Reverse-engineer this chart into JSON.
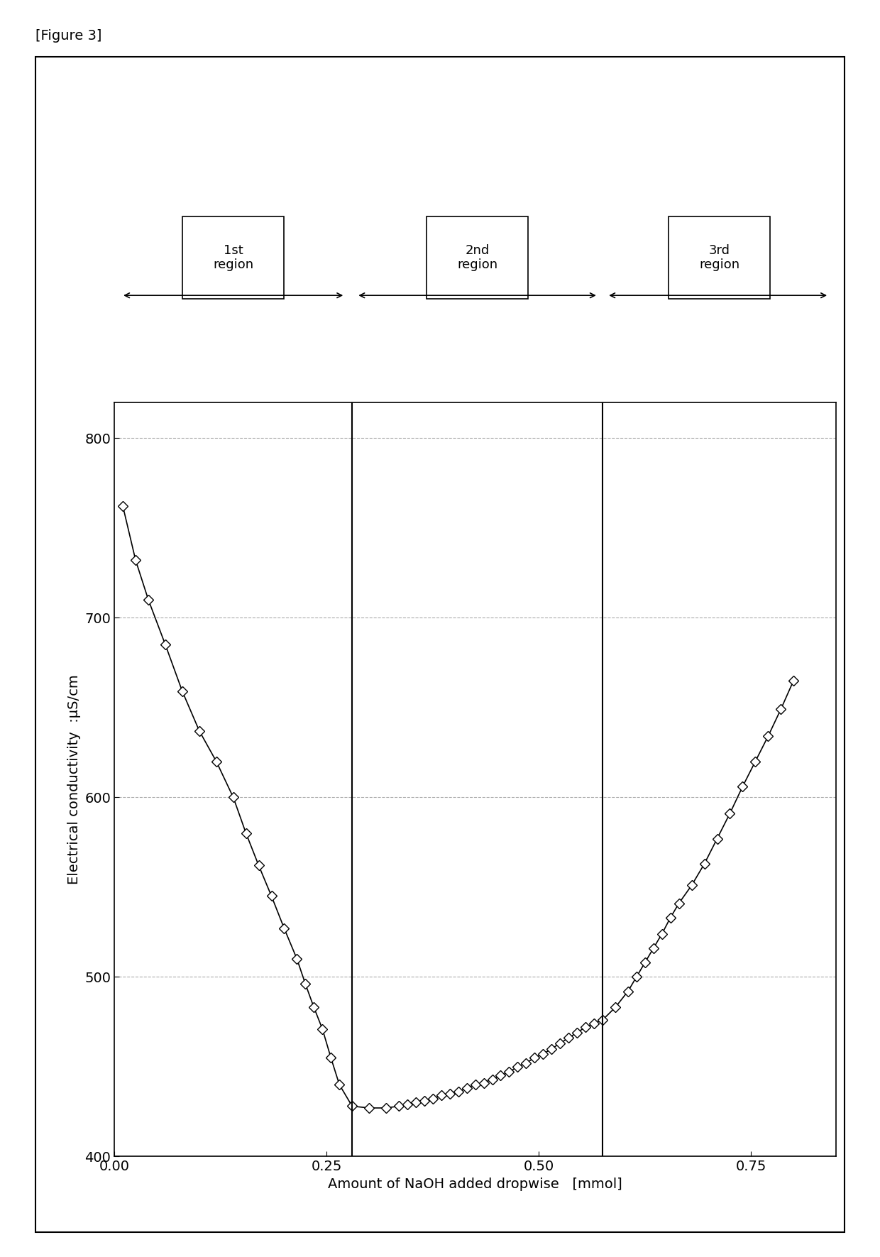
{
  "title": "[Figure 3]",
  "xlabel": "Amount of NaOH added dropwise",
  "xlabel_unit": "[mmol]",
  "ylabel": "Electrical conductivity",
  "ylabel_unit": ":μS/cm",
  "xlim": [
    0,
    0.85
  ],
  "ylim": [
    400,
    820
  ],
  "yticks": [
    400,
    500,
    600,
    700,
    800
  ],
  "xticks": [
    0,
    0.25,
    0.5,
    0.75
  ],
  "vline1": 0.28,
  "vline2": 0.575,
  "region_labels": [
    "1st\nregion",
    "2nd\nregion",
    "3rd\nregion"
  ],
  "x_data": [
    0.01,
    0.025,
    0.04,
    0.06,
    0.08,
    0.1,
    0.12,
    0.14,
    0.155,
    0.17,
    0.185,
    0.2,
    0.215,
    0.225,
    0.235,
    0.245,
    0.255,
    0.265,
    0.28,
    0.3,
    0.32,
    0.335,
    0.345,
    0.355,
    0.365,
    0.375,
    0.385,
    0.395,
    0.405,
    0.415,
    0.425,
    0.435,
    0.445,
    0.455,
    0.465,
    0.475,
    0.485,
    0.495,
    0.505,
    0.515,
    0.525,
    0.535,
    0.545,
    0.555,
    0.565,
    0.575,
    0.59,
    0.605,
    0.615,
    0.625,
    0.635,
    0.645,
    0.655,
    0.665,
    0.68,
    0.695,
    0.71,
    0.725,
    0.74,
    0.755,
    0.77,
    0.785,
    0.8
  ],
  "y_data": [
    762,
    732,
    710,
    685,
    659,
    637,
    620,
    600,
    580,
    562,
    545,
    527,
    510,
    496,
    483,
    471,
    455,
    440,
    428,
    427,
    427,
    428,
    429,
    430,
    431,
    432,
    434,
    435,
    436,
    438,
    440,
    441,
    443,
    445,
    447,
    450,
    452,
    455,
    457,
    460,
    463,
    466,
    469,
    472,
    474,
    476,
    483,
    492,
    500,
    508,
    516,
    524,
    533,
    541,
    551,
    563,
    577,
    591,
    606,
    620,
    634,
    649,
    665
  ],
  "line_color": "#000000",
  "marker_color": "#ffffff",
  "marker_edge_color": "#000000",
  "background_color": "#ffffff",
  "figure_background": "#ffffff"
}
